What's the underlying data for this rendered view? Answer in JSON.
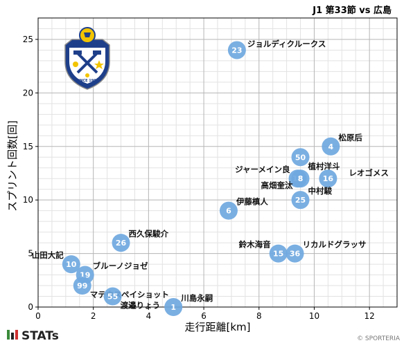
{
  "header": {
    "match": "J1 第33節 vs 広島"
  },
  "footer": {
    "brand": "STATs",
    "copyright": "© SPORTERIA"
  },
  "colors": {
    "point": "#6fa8e0",
    "grid_major": "#b5b5b5",
    "grid_minor": "#e2e2e2",
    "axis": "#000000",
    "brand_green": "#3a8a3a",
    "brand_red": "#d03030"
  },
  "logo": {
    "icon": "jubilo-iwata-crest",
    "text_top": "JUBILO IWATA",
    "text_bottom": "SINCE 1992"
  },
  "chart_data": {
    "type": "scatter",
    "xlabel": "走行距離[km]",
    "ylabel": "スプリント回数[回]",
    "xlim": [
      0,
      13
    ],
    "ylim": [
      0,
      27
    ],
    "x_ticks": [
      0,
      2,
      4,
      6,
      8,
      10,
      12
    ],
    "y_ticks": [
      0,
      5,
      10,
      15,
      20,
      25
    ],
    "grid": true,
    "points": [
      {
        "number": "23",
        "name": "ジョルディクルークス",
        "x": 7.2,
        "y": 24,
        "label_pos": "right"
      },
      {
        "number": "4",
        "name": "松原后",
        "x": 10.6,
        "y": 15,
        "label_pos": "upright"
      },
      {
        "number": "50",
        "name": "植村洋斗",
        "x": 9.5,
        "y": 14,
        "label_pos": "lowright"
      },
      {
        "number": "11",
        "name": "ジャーメイン良",
        "x": 9.4,
        "y": 12,
        "label_pos": "upleft"
      },
      {
        "number": "8",
        "name": "高畑奎汰",
        "x": 9.5,
        "y": 12,
        "label_pos": "lowleft"
      },
      {
        "number": "16",
        "name": "レオゴメス",
        "x": 10.5,
        "y": 12,
        "label_pos": "farright"
      },
      {
        "number": "25",
        "name": "中村駿",
        "x": 9.5,
        "y": 10,
        "label_pos": "upright"
      },
      {
        "number": "6",
        "name": "伊藤槙人",
        "x": 6.9,
        "y": 9,
        "label_pos": "upright"
      },
      {
        "number": "26",
        "name": "西久保駿介",
        "x": 3.0,
        "y": 6,
        "label_pos": "upright"
      },
      {
        "number": "15",
        "name": "鈴木海音",
        "x": 8.7,
        "y": 5,
        "label_pos": "upleft"
      },
      {
        "number": "36",
        "name": "リカルドグラッサ",
        "x": 9.3,
        "y": 5,
        "label_pos": "upright"
      },
      {
        "number": "10",
        "name": "山田大記",
        "x": 1.2,
        "y": 4,
        "label_pos": "upleft"
      },
      {
        "number": "19",
        "name": "ブルーノジョゼ",
        "x": 1.7,
        "y": 3,
        "label_pos": "upright"
      },
      {
        "number": "99",
        "name": "マテウスペイショット",
        "x": 1.6,
        "y": 2,
        "label_pos": "lowright"
      },
      {
        "number": "55",
        "name": "渡邉りょう",
        "x": 2.7,
        "y": 1,
        "label_pos": "lowright"
      },
      {
        "number": "1",
        "name": "川島永嗣",
        "x": 4.9,
        "y": 0,
        "label_pos": "upright"
      }
    ]
  }
}
